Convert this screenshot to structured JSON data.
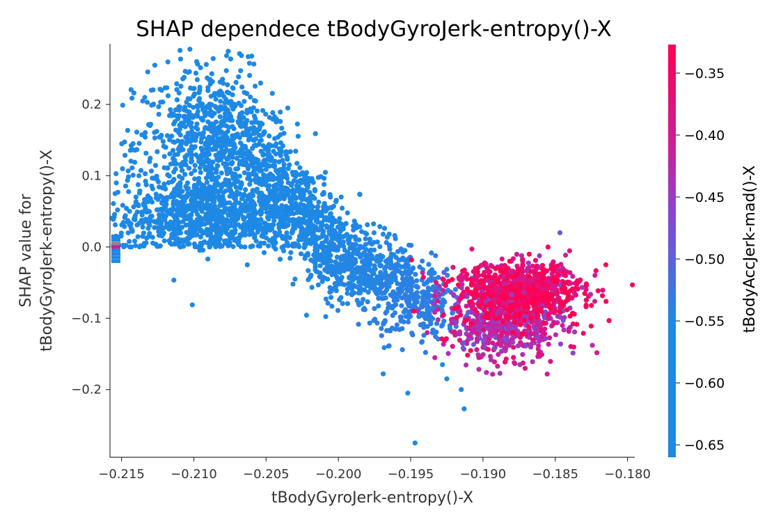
{
  "chart_data": {
    "type": "scatter",
    "title": "SHAP dependece tBodyGyroJerk-entropy()-X",
    "xlabel": "tBodyGyroJerk-entropy()-X",
    "ylabel_lines": [
      "SHAP value for",
      "tBodyGyroJerk-entropy()-X"
    ],
    "xlim": [
      -0.2158,
      -0.1795
    ],
    "ylim": [
      -0.295,
      0.285
    ],
    "x_ticks": [
      -0.215,
      -0.21,
      -0.205,
      -0.2,
      -0.195,
      -0.19,
      -0.185,
      -0.18
    ],
    "x_tick_labels": [
      "−0.215",
      "−0.210",
      "−0.205",
      "−0.200",
      "−0.195",
      "−0.190",
      "−0.185",
      "−0.180"
    ],
    "y_ticks": [
      0.2,
      0.1,
      0.0,
      -0.1,
      -0.2
    ],
    "y_tick_labels": [
      "0.2",
      "0.1",
      "0.0",
      "−0.1",
      "−0.2"
    ],
    "grid": false,
    "colorbar": {
      "label": "tBodyAccJerk-mad()-X",
      "range": [
        -0.66,
        -0.327
      ],
      "ticks": [
        -0.35,
        -0.4,
        -0.45,
        -0.5,
        -0.55,
        -0.6,
        -0.65
      ],
      "tick_labels": [
        "−0.35",
        "−0.40",
        "−0.45",
        "−0.50",
        "−0.55",
        "−0.60",
        "−0.65"
      ],
      "colors": [
        "#1e88e5",
        "#7a4fd9",
        "#c9209a",
        "#ff0052"
      ],
      "position": "right"
    },
    "point_colors": {
      "low": "#1e88e5",
      "high": "#ff0052",
      "mid": "#b52dae",
      "nan": "#888888"
    },
    "nan_strip": {
      "x": -0.2155,
      "y_values": [
        0.015,
        0.01,
        0.005,
        0.0,
        -0.005,
        -0.01,
        -0.015,
        -0.02
      ],
      "colors": [
        "#1e88e5",
        "#1e88e5",
        "#888888",
        "#c9209a",
        "#1e88e5",
        "#1e88e5",
        "#1e88e5",
        "#1e88e5"
      ]
    },
    "point_clouds": [
      {
        "name": "left-upper-cloud",
        "cx": -0.2085,
        "cy": 0.14,
        "sx": 0.0028,
        "sy": 0.055,
        "n": 900,
        "c": 0.0
      },
      {
        "name": "left-lower-cloud",
        "cx": -0.209,
        "cy": 0.04,
        "sx": 0.004,
        "sy": 0.028,
        "n": 900,
        "c": 0.0
      },
      {
        "name": "descending-band",
        "cx": -0.2025,
        "cy": 0.05,
        "sx": 0.0025,
        "sy": 0.035,
        "n": 600,
        "c": 0.0
      },
      {
        "name": "mid-transition",
        "cx": -0.198,
        "cy": -0.03,
        "sx": 0.0018,
        "sy": 0.025,
        "n": 350,
        "c": 0.02
      },
      {
        "name": "blue-tail",
        "cx": -0.1945,
        "cy": -0.08,
        "sx": 0.0015,
        "sy": 0.025,
        "n": 250,
        "c": 0.05
      },
      {
        "name": "right-cloud-purple",
        "cx": -0.1885,
        "cy": -0.1,
        "sx": 0.002,
        "sy": 0.028,
        "n": 700,
        "c": 0.55
      },
      {
        "name": "right-cloud-red",
        "cx": -0.1875,
        "cy": -0.06,
        "sx": 0.0022,
        "sy": 0.02,
        "n": 800,
        "c": 0.95
      }
    ],
    "outliers": [
      {
        "x": -0.1947,
        "y": -0.275,
        "c": 0.0
      },
      {
        "x": -0.1913,
        "y": -0.227,
        "c": 0.0
      },
      {
        "x": -0.1952,
        "y": -0.205,
        "c": 0.0
      },
      {
        "x": -0.1925,
        "y": -0.185,
        "c": 0.0
      },
      {
        "x": -0.1928,
        "y": -0.165,
        "c": 0.0
      },
      {
        "x": -0.1969,
        "y": -0.178,
        "c": 0.0
      },
      {
        "x": -0.1915,
        "y": -0.2,
        "c": 0.0
      },
      {
        "x": -0.2098,
        "y": 0.26,
        "c": 0.0
      },
      {
        "x": -0.2127,
        "y": 0.255,
        "c": 0.0
      },
      {
        "x": -0.2035,
        "y": 0.195,
        "c": 0.0
      },
      {
        "x": -0.2142,
        "y": 0.145,
        "c": 0.0
      },
      {
        "x": -0.2063,
        "y": -0.025,
        "c": 0.0
      },
      {
        "x": -0.1815,
        "y": -0.025,
        "c": 1.0
      },
      {
        "x": -0.1825,
        "y": -0.082,
        "c": 1.0
      },
      {
        "x": -0.1855,
        "y": 0.0,
        "c": 1.0
      },
      {
        "x": -0.1845,
        "y": -0.11,
        "c": 0.7
      }
    ],
    "vertical_spike": {
      "x": -0.2016,
      "y_top": 0.0,
      "y_bottom": -0.035,
      "c": 0.0
    }
  }
}
